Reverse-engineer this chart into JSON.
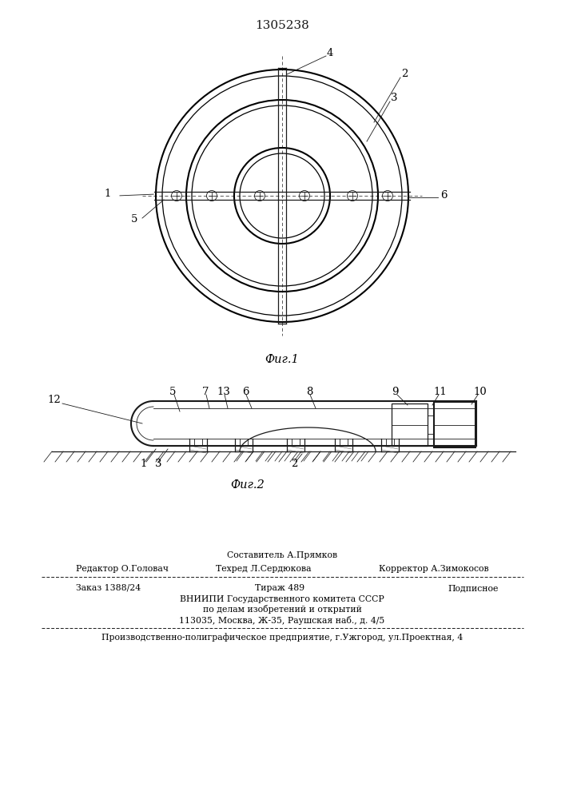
{
  "patent_number": "1305238",
  "fig1_caption": "Фиг.1",
  "fig2_caption": "Фиг.2",
  "bg_color": "#ffffff",
  "line_color": "#1a1a1a",
  "footer": {
    "sestavitel": "Составитель А.Прямков",
    "redaktor": "Редактор О.Головач",
    "tehred": "Техред Л.Сердюкова",
    "korrektor": "Корректор А.Зимокосов",
    "zakaz": "Заказ 1388/24",
    "tirazh": "Тираж 489",
    "podpisnoe": "Подписное",
    "vniiipi1": "ВНИИПИ Государственного комитета СССР",
    "vniiipi2": "по делам изобретений и открытий",
    "vniiipi3": "113035, Москва, Ж-35, Раушская наб., д. 4/5",
    "proizv": "Производственно-полиграфическое предприятие, г.Ужгород, ул.Проектная, 4"
  }
}
